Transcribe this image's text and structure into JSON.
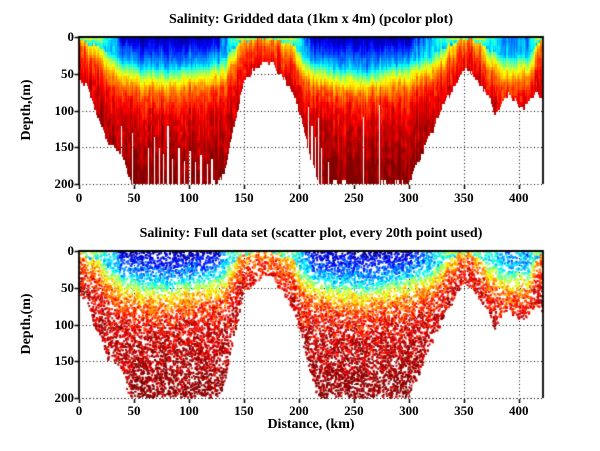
{
  "figure": {
    "background": "#ffffff",
    "axis_color": "#000000",
    "text_color": "#000000",
    "grid_style": "dotted"
  },
  "chart_data": [
    {
      "type": "pcolor",
      "title": "Salinity: Gridded data (1km x 4m) (pcolor plot)",
      "xlabel": "",
      "ylabel": "Depth,(m)",
      "colormap": "jet",
      "xlim": [
        0,
        422
      ],
      "ylim": [
        200,
        0
      ],
      "xticks": [
        0,
        50,
        100,
        150,
        200,
        250,
        300,
        350,
        400
      ],
      "xtick_labels": [
        "0",
        "50",
        "100",
        "150",
        "200",
        "250",
        "300",
        "350",
        "400"
      ],
      "yticks": [
        0,
        50,
        100,
        150,
        200
      ],
      "ytick_labels": [
        "0",
        "50",
        "100",
        "150",
        "200"
      ],
      "grid": "dotted",
      "cell_km": 1,
      "cell_m": 4,
      "field_model": {
        "comment": "seafloor depth (m) vs distance (km); data white below seafloor",
        "bathymetry_km_m": [
          [
            0,
            58
          ],
          [
            4,
            62
          ],
          [
            8,
            68
          ],
          [
            12,
            88
          ],
          [
            16,
            105
          ],
          [
            20,
            122
          ],
          [
            24,
            138
          ],
          [
            28,
            148
          ],
          [
            32,
            152
          ],
          [
            36,
            158
          ],
          [
            40,
            168
          ],
          [
            44,
            190
          ],
          [
            48,
            200
          ],
          [
            125,
            200
          ],
          [
            130,
            192
          ],
          [
            134,
            165
          ],
          [
            138,
            140
          ],
          [
            142,
            110
          ],
          [
            146,
            85
          ],
          [
            150,
            66
          ],
          [
            155,
            52
          ],
          [
            160,
            44
          ],
          [
            165,
            39
          ],
          [
            170,
            36
          ],
          [
            175,
            34
          ],
          [
            178,
            40
          ],
          [
            182,
            48
          ],
          [
            186,
            56
          ],
          [
            190,
            68
          ],
          [
            194,
            80
          ],
          [
            198,
            92
          ],
          [
            202,
            115
          ],
          [
            206,
            140
          ],
          [
            210,
            165
          ],
          [
            214,
            185
          ],
          [
            218,
            200
          ],
          [
            298,
            200
          ],
          [
            304,
            182
          ],
          [
            310,
            162
          ],
          [
            316,
            142
          ],
          [
            322,
            122
          ],
          [
            328,
            102
          ],
          [
            334,
            84
          ],
          [
            340,
            68
          ],
          [
            345,
            56
          ],
          [
            350,
            46
          ],
          [
            354,
            42
          ],
          [
            357,
            44
          ],
          [
            360,
            58
          ],
          [
            364,
            70
          ],
          [
            368,
            76
          ],
          [
            372,
            82
          ],
          [
            375,
            90
          ],
          [
            378,
            112
          ],
          [
            381,
            100
          ],
          [
            384,
            88
          ],
          [
            388,
            82
          ],
          [
            392,
            80
          ],
          [
            396,
            84
          ],
          [
            400,
            90
          ],
          [
            404,
            94
          ],
          [
            408,
            88
          ],
          [
            412,
            80
          ],
          [
            415,
            76
          ],
          [
            418,
            78
          ],
          [
            422,
            80
          ]
        ],
        "halocline_km_m": [
          [
            0,
            5
          ],
          [
            8,
            8
          ],
          [
            14,
            12
          ],
          [
            20,
            16
          ],
          [
            26,
            21
          ],
          [
            32,
            26
          ],
          [
            40,
            32
          ],
          [
            50,
            38
          ],
          [
            60,
            42
          ],
          [
            75,
            43
          ],
          [
            90,
            41
          ],
          [
            105,
            38
          ],
          [
            118,
            35
          ],
          [
            128,
            31
          ],
          [
            134,
            24
          ],
          [
            140,
            16
          ],
          [
            146,
            9
          ],
          [
            152,
            6
          ],
          [
            160,
            3
          ],
          [
            170,
            2
          ],
          [
            178,
            4
          ],
          [
            186,
            7
          ],
          [
            194,
            12
          ],
          [
            200,
            18
          ],
          [
            208,
            28
          ],
          [
            216,
            34
          ],
          [
            226,
            40
          ],
          [
            238,
            43
          ],
          [
            250,
            45
          ],
          [
            262,
            44
          ],
          [
            275,
            41
          ],
          [
            288,
            38
          ],
          [
            300,
            34
          ],
          [
            310,
            29
          ],
          [
            320,
            23
          ],
          [
            330,
            18
          ],
          [
            336,
            11
          ],
          [
            342,
            6
          ],
          [
            348,
            3
          ],
          [
            356,
            3
          ],
          [
            362,
            8
          ],
          [
            368,
            14
          ],
          [
            374,
            19
          ],
          [
            380,
            23
          ],
          [
            386,
            26
          ],
          [
            393,
            28
          ],
          [
            400,
            26
          ],
          [
            404,
            25
          ],
          [
            408,
            24
          ],
          [
            412,
            16
          ],
          [
            416,
            9
          ],
          [
            420,
            6
          ],
          [
            422,
            5
          ]
        ],
        "data_gaps_km_topm": [
          [
            38,
            120
          ],
          [
            48,
            130
          ],
          [
            62,
            150
          ],
          [
            68,
            135
          ],
          [
            72,
            150
          ],
          [
            76,
            158
          ],
          [
            80,
            120
          ],
          [
            84,
            165
          ],
          [
            90,
            150
          ],
          [
            95,
            168
          ],
          [
            100,
            155
          ],
          [
            105,
            170
          ],
          [
            110,
            160
          ],
          [
            116,
            172
          ],
          [
            120,
            165
          ],
          [
            208,
            95
          ],
          [
            211,
            120
          ],
          [
            214,
            135
          ],
          [
            217,
            110
          ],
          [
            220,
            150
          ],
          [
            226,
            170
          ],
          [
            258,
            108
          ],
          [
            272,
            92
          ],
          [
            352,
            55
          ]
        ],
        "salinity_note": "fresh (dark blue) surface layer over deep basins; salty (red) water reaching surface over sills near 0, 170, 350 and 418 km; dark red below ~140 m",
        "seed": 42
      }
    },
    {
      "type": "scatter",
      "title": "Salinity: Full data set (scatter plot, every 20th point used)",
      "xlabel": "Distance, (km)",
      "ylabel": "Depth,(m)",
      "colormap": "jet",
      "xlim": [
        0,
        422
      ],
      "ylim": [
        200,
        0
      ],
      "xticks": [
        0,
        50,
        100,
        150,
        200,
        250,
        300,
        350,
        400
      ],
      "xtick_labels": [
        "0",
        "50",
        "100",
        "150",
        "200",
        "250",
        "300",
        "350",
        "400"
      ],
      "yticks": [
        0,
        50,
        100,
        150,
        200
      ],
      "ytick_labels": [
        "0",
        "50",
        "100",
        "150",
        "200"
      ],
      "grid": "dotted",
      "marker_px": 2,
      "sample_attempts": 20000,
      "field_model": "same as chart 0"
    }
  ]
}
